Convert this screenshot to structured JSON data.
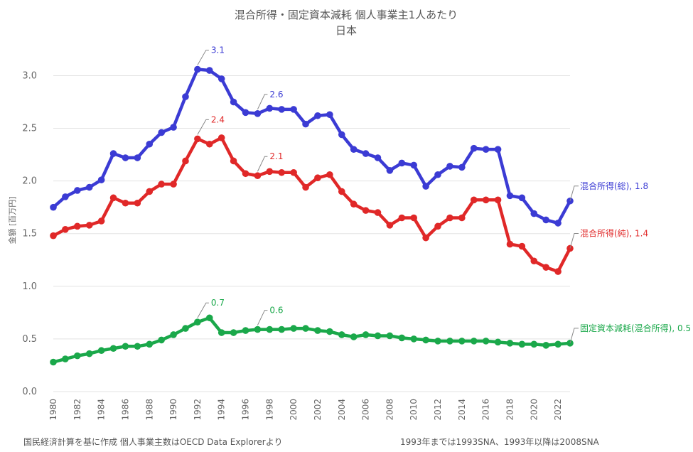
{
  "chart_data": {
    "type": "line",
    "title": "混合所得・固定資本減耗 個人事業主1人あたり",
    "subtitle": "日本",
    "xlabel": "",
    "ylabel": "金額 [百万円]",
    "ylim": [
      0,
      3.3
    ],
    "yticks": [
      "0.0",
      "0.5",
      "1.0",
      "1.5",
      "2.0",
      "2.5",
      "3.0"
    ],
    "xlim": [
      1980,
      2023
    ],
    "xticks": [
      "1980",
      "1982",
      "1984",
      "1986",
      "1988",
      "1990",
      "1992",
      "1994",
      "1996",
      "1998",
      "2000",
      "2002",
      "2004",
      "2006",
      "2008",
      "2010",
      "2012",
      "2014",
      "2016",
      "2018",
      "2020",
      "2022"
    ],
    "grid": true,
    "x": [
      1980,
      1981,
      1982,
      1983,
      1984,
      1985,
      1986,
      1987,
      1988,
      1989,
      1990,
      1991,
      1992,
      1993,
      1994,
      1995,
      1996,
      1997,
      1998,
      1999,
      2000,
      2001,
      2002,
      2003,
      2004,
      2005,
      2006,
      2007,
      2008,
      2009,
      2010,
      2011,
      2012,
      2013,
      2014,
      2015,
      2016,
      2017,
      2018,
      2019,
      2020,
      2021,
      2022,
      2023
    ],
    "series": [
      {
        "name": "混合所得(総)",
        "color": "#3b3bd4",
        "end_label": "混合所得(総), 1.8",
        "values": [
          1.75,
          1.85,
          1.91,
          1.94,
          2.01,
          2.26,
          2.22,
          2.22,
          2.35,
          2.46,
          2.51,
          2.8,
          3.06,
          3.05,
          2.97,
          2.75,
          2.65,
          2.64,
          2.69,
          2.68,
          2.68,
          2.54,
          2.62,
          2.63,
          2.44,
          2.3,
          2.26,
          2.22,
          2.1,
          2.17,
          2.15,
          1.95,
          2.06,
          2.14,
          2.13,
          2.31,
          2.3,
          2.3,
          1.86,
          1.84,
          1.69,
          1.63,
          1.6,
          1.81
        ]
      },
      {
        "name": "混合所得(純)",
        "color": "#e02828",
        "end_label": "混合所得(純), 1.4",
        "values": [
          1.48,
          1.54,
          1.57,
          1.58,
          1.62,
          1.84,
          1.79,
          1.79,
          1.9,
          1.97,
          1.97,
          2.19,
          2.4,
          2.35,
          2.41,
          2.19,
          2.07,
          2.05,
          2.09,
          2.08,
          2.08,
          1.94,
          2.03,
          2.06,
          1.9,
          1.78,
          1.72,
          1.7,
          1.58,
          1.65,
          1.65,
          1.46,
          1.57,
          1.65,
          1.65,
          1.82,
          1.82,
          1.82,
          1.4,
          1.38,
          1.24,
          1.18,
          1.14,
          1.36
        ]
      },
      {
        "name": "固定資本減耗(混合所得)",
        "color": "#1aa84a",
        "end_label": "固定資本減耗(混合所得), 0.5",
        "values": [
          0.28,
          0.31,
          0.34,
          0.36,
          0.39,
          0.41,
          0.43,
          0.43,
          0.45,
          0.49,
          0.54,
          0.6,
          0.66,
          0.7,
          0.56,
          0.56,
          0.58,
          0.59,
          0.59,
          0.59,
          0.6,
          0.6,
          0.58,
          0.57,
          0.54,
          0.52,
          0.54,
          0.53,
          0.53,
          0.51,
          0.5,
          0.49,
          0.48,
          0.48,
          0.48,
          0.48,
          0.48,
          0.47,
          0.46,
          0.45,
          0.45,
          0.44,
          0.45,
          0.46
        ]
      }
    ],
    "annotations": [
      {
        "series": 0,
        "x": 1992,
        "text": "3.1"
      },
      {
        "series": 0,
        "x": 1997,
        "text": "2.6"
      },
      {
        "series": 1,
        "x": 1992,
        "text": "2.4"
      },
      {
        "series": 1,
        "x": 1997,
        "text": "2.1"
      },
      {
        "series": 2,
        "x": 1992,
        "text": "0.7"
      },
      {
        "series": 2,
        "x": 1997,
        "text": "0.6"
      }
    ],
    "footnote_left": "国民経済計算を基に作成 個人事業主数はOECD Data Explorerより",
    "footnote_right": "1993年までは1993SNA、1993年以降は2008SNA"
  }
}
